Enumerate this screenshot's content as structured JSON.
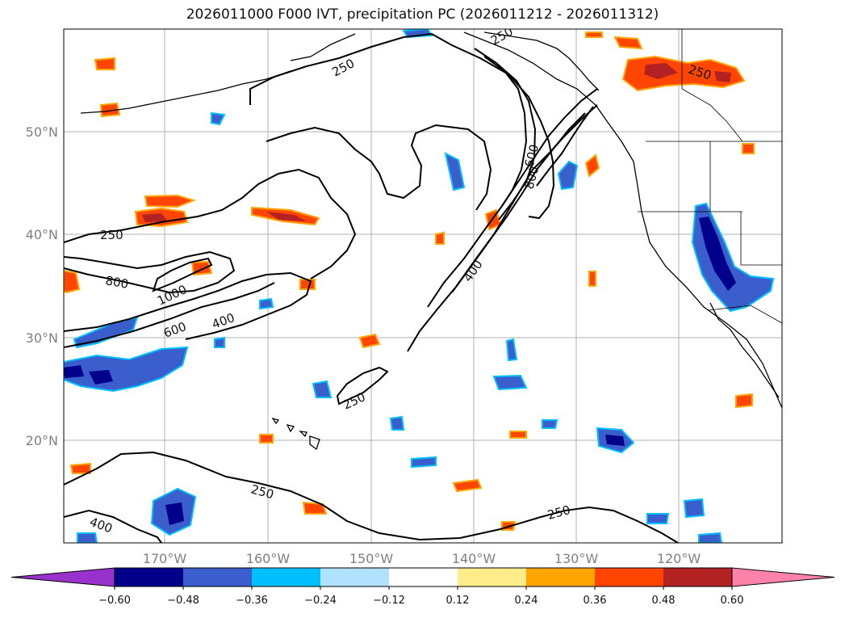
{
  "title": "2026011000 F000 IVT, precipitation PC (2026011212 - 2026011312)",
  "map": {
    "lat_labels": [
      "50°N",
      "40°N",
      "30°N",
      "20°N"
    ],
    "lon_labels": [
      "170°W",
      "160°W",
      "150°W",
      "140°W",
      "130°W",
      "120°W"
    ],
    "contour_labels": [
      "250",
      "250",
      "250",
      "250",
      "250",
      "250",
      "250",
      "400",
      "400",
      "400",
      "600",
      "800",
      "800",
      "1000",
      "600"
    ]
  },
  "colorbar": {
    "ticks": [
      "−0.60",
      "−0.48",
      "−0.36",
      "−0.24",
      "−0.12",
      "0.12",
      "0.24",
      "0.36",
      "0.48",
      "0.60"
    ],
    "colors": [
      "#9932CC",
      "#00008B",
      "#3A5FCD",
      "#00BFFF",
      "#B0E2FF",
      "#FFFFFF",
      "#FFEC8B",
      "#FFA500",
      "#FF4500",
      "#B22222",
      "#FF82AB"
    ]
  },
  "colors": {
    "neg_dark": "#00008B",
    "neg_mid": "#3A5FCD",
    "neg_light": "#00BFFF",
    "neg_pale": "#B0E2FF",
    "pos_pale": "#FFEC8B",
    "pos_light": "#FFA500",
    "pos_mid": "#FF4500",
    "pos_dark": "#B22222"
  }
}
